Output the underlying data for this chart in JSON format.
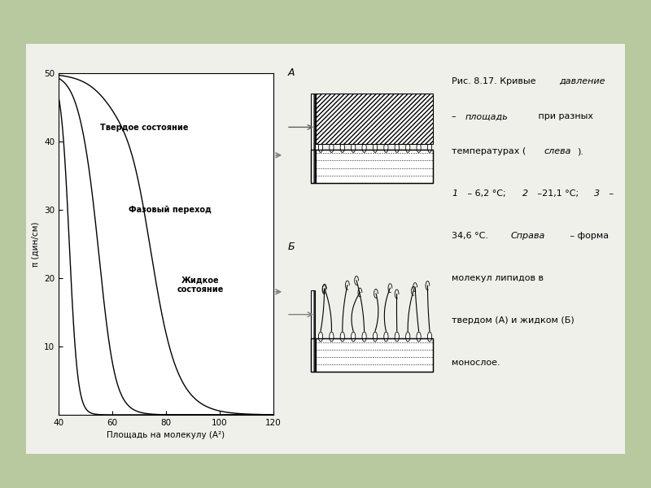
{
  "background_outer": "#b8c9a0",
  "background_inner": "#f0f0eb",
  "plot_bg": "#ffffff",
  "xlabel": "Площадь на молекулу (А²)",
  "ylabel": "π (дин/см)",
  "xlim": [
    40,
    120
  ],
  "ylim": [
    0,
    50
  ],
  "xticks": [
    40,
    60,
    80,
    100,
    120
  ],
  "yticks": [
    10,
    20,
    30,
    40,
    50
  ],
  "label_solid": "Твердое состояние",
  "label_phase": "Фазовый переход",
  "label_liquid": "Жидкое\nсостояние",
  "label_A": "A",
  "label_B": "Б"
}
